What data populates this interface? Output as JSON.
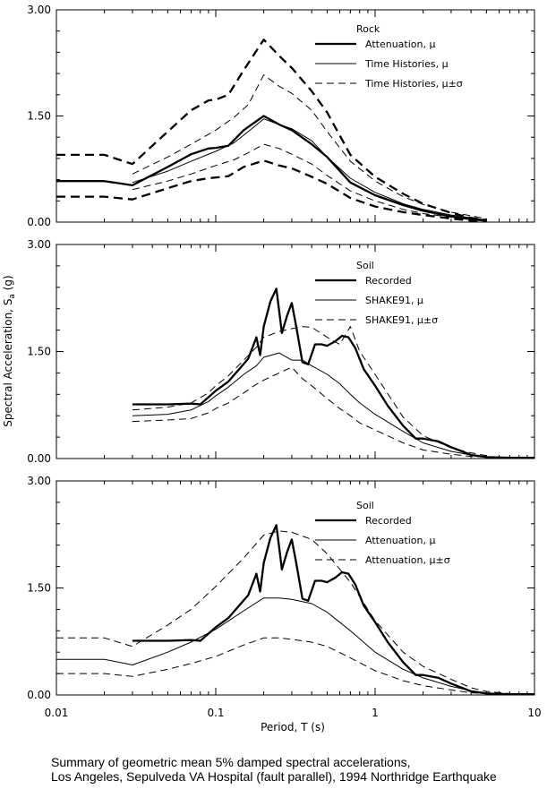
{
  "figure": {
    "xlabel": "Period, T (s)",
    "ylabel_main": "Spectral Acceleration, S",
    "ylabel_sub": "a",
    "ylabel_unit": " (g)"
  },
  "caption": {
    "line1": "Summary of geometric mean 5% damped spectral accelerations,",
    "line2": "Los Angeles, Sepulveda VA Hospital (fault parallel), 1994 Northridge Earthquake"
  },
  "colors": {
    "line": "#000000",
    "frame": "#000000"
  },
  "chart_data": [
    {
      "type": "line",
      "x_scale": "log",
      "xlim": [
        0.01,
        10
      ],
      "ylim": [
        0,
        3
      ],
      "x_ticks": [
        "0.01",
        "0.1",
        "1",
        "10"
      ],
      "x_tick_values": [
        0.01,
        0.1,
        1,
        10
      ],
      "y_ticks": [
        "0.00",
        "1.50",
        "3.00"
      ],
      "y_tick_values": [
        0,
        1.5,
        3
      ],
      "legend_title": "Rock",
      "legend_placement": "top-right",
      "series": [
        {
          "name": "Attenuation, μ",
          "style": "bold-solid",
          "x": [
            0.01,
            0.02,
            0.03,
            0.05,
            0.07,
            0.09,
            0.1,
            0.12,
            0.15,
            0.2,
            0.25,
            0.3,
            0.4,
            0.5,
            0.7,
            1.0,
            1.5,
            2.0,
            3.0,
            4.0,
            5.0
          ],
          "y": [
            0.58,
            0.58,
            0.52,
            0.78,
            0.96,
            1.04,
            1.05,
            1.08,
            1.3,
            1.5,
            1.38,
            1.3,
            1.1,
            0.92,
            0.56,
            0.38,
            0.24,
            0.16,
            0.08,
            0.04,
            0.02
          ]
        },
        {
          "name": "Time Histories, μ",
          "style": "thin-solid",
          "x": [
            0.03,
            0.05,
            0.07,
            0.1,
            0.13,
            0.16,
            0.2,
            0.25,
            0.3,
            0.4,
            0.5,
            0.7,
            1.0,
            1.5,
            2.0,
            3.0,
            5.0
          ],
          "y": [
            0.56,
            0.72,
            0.86,
            1.0,
            1.12,
            1.28,
            1.46,
            1.38,
            1.32,
            1.15,
            0.92,
            0.62,
            0.42,
            0.26,
            0.18,
            0.1,
            0.03
          ]
        },
        {
          "name": "Time Histories, μ±σ (upper)",
          "style": "thin-dashed",
          "x": [
            0.03,
            0.05,
            0.07,
            0.1,
            0.13,
            0.16,
            0.2,
            0.25,
            0.3,
            0.4,
            0.5,
            0.7,
            1.0,
            1.5,
            2.0,
            3.0,
            5.0
          ],
          "y": [
            0.68,
            0.92,
            1.1,
            1.3,
            1.48,
            1.66,
            2.08,
            1.92,
            1.82,
            1.58,
            1.28,
            0.86,
            0.58,
            0.36,
            0.25,
            0.14,
            0.05
          ]
        },
        {
          "name": "Time Histories, μ±σ (lower)",
          "style": "thin-dashed",
          "x": [
            0.03,
            0.05,
            0.07,
            0.1,
            0.13,
            0.16,
            0.2,
            0.25,
            0.3,
            0.4,
            0.5,
            0.7,
            1.0,
            1.5,
            2.0,
            3.0,
            5.0
          ],
          "y": [
            0.46,
            0.58,
            0.68,
            0.8,
            0.88,
            0.98,
            1.1,
            1.04,
            0.96,
            0.82,
            0.66,
            0.44,
            0.3,
            0.18,
            0.12,
            0.07,
            0.02
          ]
        },
        {
          "name": "Attenuation, μ±σ (upper)",
          "style": "bold-dashed",
          "x": [
            0.01,
            0.02,
            0.03,
            0.05,
            0.07,
            0.09,
            0.1,
            0.12,
            0.15,
            0.2,
            0.25,
            0.3,
            0.4,
            0.5,
            0.7,
            1.0,
            1.5,
            2.0,
            3.0,
            4.0,
            5.0
          ],
          "y": [
            0.95,
            0.95,
            0.82,
            1.28,
            1.58,
            1.72,
            1.73,
            1.8,
            2.15,
            2.58,
            2.35,
            2.18,
            1.85,
            1.55,
            0.95,
            0.64,
            0.4,
            0.26,
            0.13,
            0.06,
            0.03
          ]
        },
        {
          "name": "Attenuation, μ±σ (lower)",
          "style": "bold-dashed",
          "x": [
            0.01,
            0.02,
            0.03,
            0.05,
            0.07,
            0.09,
            0.1,
            0.12,
            0.15,
            0.2,
            0.25,
            0.3,
            0.4,
            0.5,
            0.7,
            1.0,
            1.5,
            2.0,
            3.0,
            4.0,
            5.0
          ],
          "y": [
            0.36,
            0.36,
            0.32,
            0.48,
            0.58,
            0.62,
            0.63,
            0.65,
            0.78,
            0.87,
            0.8,
            0.76,
            0.64,
            0.54,
            0.34,
            0.22,
            0.14,
            0.1,
            0.05,
            0.02,
            0.01
          ]
        }
      ],
      "legend": [
        {
          "label": "Attenuation, μ",
          "style": "bold-solid"
        },
        {
          "label": "Time Histories, μ",
          "style": "thin-solid"
        },
        {
          "label": "Time Histories, μ±σ",
          "style": "thin-dashed"
        }
      ]
    },
    {
      "type": "line",
      "x_scale": "log",
      "xlim": [
        0.01,
        10
      ],
      "ylim": [
        0,
        3
      ],
      "x_ticks": [
        "0.01",
        "0.1",
        "1",
        "10"
      ],
      "x_tick_values": [
        0.01,
        0.1,
        1,
        10
      ],
      "y_ticks": [
        "0.00",
        "1.50",
        "3.00"
      ],
      "y_tick_values": [
        0,
        1.5,
        3
      ],
      "legend_title": "Soil",
      "legend_placement": "top-right",
      "series": [
        {
          "name": "Recorded",
          "style": "bold-solid",
          "x": [
            0.03,
            0.05,
            0.07,
            0.08,
            0.09,
            0.1,
            0.12,
            0.14,
            0.16,
            0.18,
            0.19,
            0.2,
            0.22,
            0.24,
            0.26,
            0.28,
            0.3,
            0.32,
            0.35,
            0.38,
            0.42,
            0.46,
            0.5,
            0.56,
            0.62,
            0.68,
            0.75,
            0.85,
            1.0,
            1.2,
            1.5,
            1.8,
            2.0,
            2.5,
            3.0,
            4.0,
            5.0,
            7.0,
            10.0
          ],
          "y": [
            0.76,
            0.76,
            0.77,
            0.76,
            0.86,
            0.95,
            1.08,
            1.25,
            1.4,
            1.7,
            1.45,
            1.85,
            2.2,
            2.38,
            1.76,
            2.0,
            2.18,
            1.85,
            1.35,
            1.32,
            1.6,
            1.6,
            1.58,
            1.64,
            1.72,
            1.7,
            1.55,
            1.25,
            1.02,
            0.74,
            0.46,
            0.28,
            0.28,
            0.24,
            0.16,
            0.05,
            0.02,
            0.01,
            0.01
          ]
        },
        {
          "name": "SHAKE91, μ",
          "style": "thin-solid",
          "x": [
            0.03,
            0.05,
            0.07,
            0.09,
            0.1,
            0.12,
            0.15,
            0.18,
            0.2,
            0.25,
            0.3,
            0.35,
            0.4,
            0.5,
            0.6,
            0.7,
            0.8,
            1.0,
            1.5,
            2.0,
            3.0,
            4.0,
            5.0
          ],
          "y": [
            0.6,
            0.62,
            0.68,
            0.8,
            0.88,
            1.0,
            1.18,
            1.3,
            1.42,
            1.48,
            1.38,
            1.38,
            1.3,
            1.18,
            1.05,
            0.9,
            0.78,
            0.62,
            0.38,
            0.22,
            0.1,
            0.05,
            0.03
          ]
        },
        {
          "name": "SHAKE91, μ±σ (upper)",
          "style": "thin-dashed",
          "x": [
            0.03,
            0.05,
            0.07,
            0.09,
            0.1,
            0.12,
            0.15,
            0.18,
            0.2,
            0.25,
            0.3,
            0.35,
            0.4,
            0.5,
            0.6,
            0.7,
            0.8,
            1.0,
            1.5,
            2.0,
            3.0,
            4.0,
            5.0
          ],
          "y": [
            0.68,
            0.72,
            0.78,
            0.92,
            1.02,
            1.16,
            1.38,
            1.56,
            1.7,
            1.78,
            1.82,
            1.85,
            1.84,
            1.7,
            1.6,
            1.85,
            1.5,
            1.18,
            0.58,
            0.32,
            0.15,
            0.08,
            0.04
          ]
        },
        {
          "name": "SHAKE91, μ±σ (lower)",
          "style": "thin-dashed",
          "x": [
            0.03,
            0.05,
            0.07,
            0.09,
            0.1,
            0.12,
            0.15,
            0.18,
            0.2,
            0.25,
            0.3,
            0.35,
            0.4,
            0.5,
            0.6,
            0.7,
            0.8,
            1.0,
            1.5,
            2.0,
            3.0,
            4.0,
            5.0
          ],
          "y": [
            0.52,
            0.54,
            0.56,
            0.64,
            0.7,
            0.78,
            0.92,
            1.04,
            1.1,
            1.2,
            1.28,
            1.12,
            1.02,
            0.84,
            0.7,
            0.6,
            0.5,
            0.4,
            0.22,
            0.12,
            0.06,
            0.03,
            0.02
          ]
        }
      ],
      "legend": [
        {
          "label": "Recorded",
          "style": "bold-solid"
        },
        {
          "label": "SHAKE91, μ",
          "style": "thin-solid"
        },
        {
          "label": "SHAKE91, μ±σ",
          "style": "thin-dashed"
        }
      ]
    },
    {
      "type": "line",
      "x_scale": "log",
      "xlim": [
        0.01,
        10
      ],
      "ylim": [
        0,
        3
      ],
      "x_ticks": [
        "0.01",
        "0.1",
        "1",
        "10"
      ],
      "x_tick_values": [
        0.01,
        0.1,
        1,
        10
      ],
      "y_ticks": [
        "0.00",
        "1.50",
        "3.00"
      ],
      "y_tick_values": [
        0,
        1.5,
        3
      ],
      "legend_title": "Soil",
      "legend_placement": "top-right",
      "series": [
        {
          "name": "Recorded",
          "style": "bold-solid",
          "x": [
            0.03,
            0.05,
            0.07,
            0.08,
            0.09,
            0.1,
            0.12,
            0.14,
            0.16,
            0.18,
            0.19,
            0.2,
            0.22,
            0.24,
            0.26,
            0.28,
            0.3,
            0.32,
            0.35,
            0.38,
            0.42,
            0.46,
            0.5,
            0.56,
            0.62,
            0.68,
            0.75,
            0.85,
            1.0,
            1.2,
            1.5,
            1.8,
            2.0,
            2.5,
            3.0,
            4.0,
            5.0,
            7.0,
            10.0
          ],
          "y": [
            0.76,
            0.76,
            0.77,
            0.76,
            0.86,
            0.95,
            1.08,
            1.25,
            1.4,
            1.7,
            1.45,
            1.85,
            2.2,
            2.38,
            1.76,
            2.0,
            2.18,
            1.85,
            1.35,
            1.32,
            1.6,
            1.6,
            1.58,
            1.64,
            1.72,
            1.7,
            1.55,
            1.25,
            1.02,
            0.74,
            0.46,
            0.28,
            0.28,
            0.24,
            0.16,
            0.05,
            0.02,
            0.01,
            0.01
          ]
        },
        {
          "name": "Attenuation, μ",
          "style": "thin-solid",
          "x": [
            0.01,
            0.02,
            0.03,
            0.05,
            0.07,
            0.1,
            0.15,
            0.2,
            0.25,
            0.3,
            0.4,
            0.5,
            0.7,
            1.0,
            1.5,
            2.0,
            3.0,
            4.0,
            5.0,
            7.0,
            10.0
          ],
          "y": [
            0.5,
            0.5,
            0.42,
            0.6,
            0.74,
            0.92,
            1.18,
            1.36,
            1.36,
            1.34,
            1.28,
            1.16,
            0.9,
            0.6,
            0.36,
            0.24,
            0.12,
            0.06,
            0.03,
            0.01,
            0.01
          ]
        },
        {
          "name": "Attenuation, μ±σ (upper)",
          "style": "thin-dashed",
          "x": [
            0.01,
            0.02,
            0.03,
            0.05,
            0.07,
            0.1,
            0.15,
            0.2,
            0.25,
            0.3,
            0.4,
            0.5,
            0.7,
            1.0,
            1.5,
            2.0,
            3.0,
            4.0,
            5.0,
            7.0,
            10.0
          ],
          "y": [
            0.8,
            0.8,
            0.68,
            0.98,
            1.2,
            1.52,
            1.92,
            2.24,
            2.3,
            2.28,
            2.18,
            1.98,
            1.58,
            1.04,
            0.6,
            0.4,
            0.22,
            0.1,
            0.05,
            0.02,
            0.01
          ]
        },
        {
          "name": "Attenuation, μ±σ (lower)",
          "style": "thin-dashed",
          "x": [
            0.01,
            0.02,
            0.03,
            0.05,
            0.07,
            0.1,
            0.15,
            0.2,
            0.25,
            0.3,
            0.4,
            0.5,
            0.7,
            1.0,
            1.5,
            2.0,
            3.0,
            4.0,
            5.0,
            7.0,
            10.0
          ],
          "y": [
            0.3,
            0.3,
            0.26,
            0.36,
            0.44,
            0.54,
            0.7,
            0.8,
            0.8,
            0.78,
            0.74,
            0.68,
            0.52,
            0.34,
            0.2,
            0.13,
            0.07,
            0.03,
            0.02,
            0.01,
            0.01
          ]
        }
      ],
      "legend": [
        {
          "label": "Recorded",
          "style": "bold-solid"
        },
        {
          "label": "Attenuation, μ",
          "style": "thin-solid"
        },
        {
          "label": "Attenuation, μ±σ",
          "style": "thin-dashed"
        }
      ]
    }
  ]
}
